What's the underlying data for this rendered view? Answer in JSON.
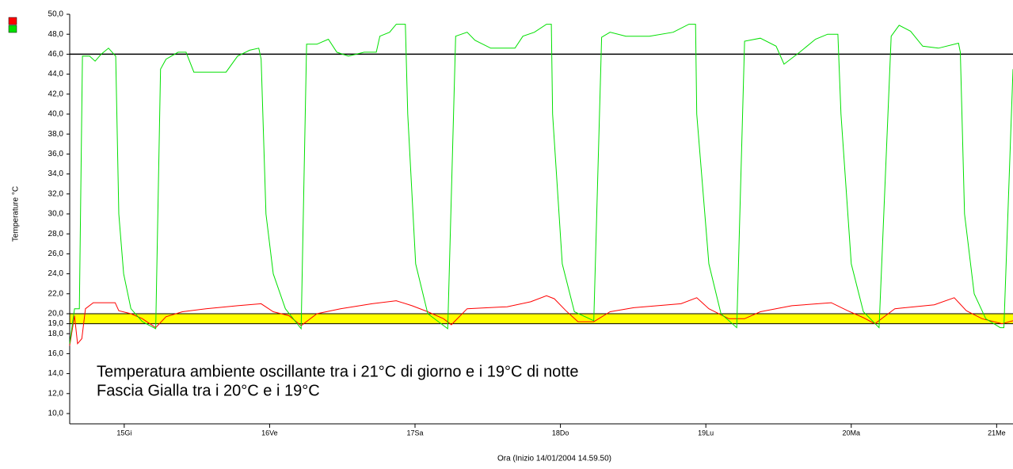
{
  "chart_data": {
    "type": "line",
    "ylabel": "Temperature °C",
    "xlabel": "Ora (Inizio 14/01/2004 14.59.50)",
    "ylim": [
      10,
      50
    ],
    "yticks": [
      {
        "value": 10,
        "label": "10,0"
      },
      {
        "value": 12,
        "label": "12,0"
      },
      {
        "value": 14,
        "label": "14,0"
      },
      {
        "value": 16,
        "label": "16,0"
      },
      {
        "value": 18,
        "label": "18,0"
      },
      {
        "value": 19,
        "label": "19,0"
      },
      {
        "value": 20,
        "label": "20,0"
      },
      {
        "value": 22,
        "label": "22,0"
      },
      {
        "value": 24,
        "label": "24,0"
      },
      {
        "value": 26,
        "label": "26,0"
      },
      {
        "value": 28,
        "label": "28,0"
      },
      {
        "value": 30,
        "label": "30,0"
      },
      {
        "value": 32,
        "label": "32,0"
      },
      {
        "value": 34,
        "label": "34,0"
      },
      {
        "value": 36,
        "label": "36,0"
      },
      {
        "value": 38,
        "label": "38,0"
      },
      {
        "value": 40,
        "label": "40,0"
      },
      {
        "value": 42,
        "label": "42,0"
      },
      {
        "value": 44,
        "label": "44,0"
      },
      {
        "value": 46,
        "label": "46,0"
      },
      {
        "value": 48,
        "label": "48,0"
      },
      {
        "value": 50,
        "label": "50,0"
      }
    ],
    "xlim": [
      0,
      155.7
    ],
    "xticks": [
      {
        "value": 9,
        "label": "15Gi"
      },
      {
        "value": 33,
        "label": "16Ve"
      },
      {
        "value": 57,
        "label": "17Sa"
      },
      {
        "value": 81,
        "label": "18Do"
      },
      {
        "value": 105,
        "label": "19Lu"
      },
      {
        "value": 129,
        "label": "20Ma"
      },
      {
        "value": 153,
        "label": "21Me"
      }
    ],
    "reference_line": {
      "value": 46,
      "color": "#000000"
    },
    "band": {
      "range": [
        19,
        20
      ],
      "color": "#ffff00"
    },
    "annotations": [
      "Temperatura ambiente oscillante tra i 21°C di giorno e i 19°C di notte",
      "Fascia Gialla tra i 20°C e i 19°C"
    ],
    "series": [
      {
        "color": "#ff0000",
        "x": [
          0,
          0.8,
          1.3,
          2.0,
          2.6,
          3.9,
          7.5,
          8.1,
          10.1,
          12.0,
          14.2,
          15.9,
          18.6,
          22.5,
          27.7,
          31.6,
          33.6,
          36.2,
          38.2,
          40.8,
          44.7,
          49.9,
          53.9,
          56.5,
          59.1,
          61.7,
          63.0,
          65.6,
          72.2,
          76.1,
          78.7,
          80.0,
          81.9,
          83.9,
          86.5,
          89.2,
          93.1,
          100.9,
          103.5,
          105.5,
          108.8,
          111.4,
          114.0,
          119.2,
          125.7,
          128.4,
          131.0,
          132.9,
          136.2,
          142.7,
          146.0,
          148.0,
          150.6,
          153.9,
          155.7
        ],
        "values": [
          16.8,
          19.8,
          17,
          17.5,
          20.5,
          21.1,
          21.1,
          20.3,
          20,
          19.5,
          18.6,
          19.7,
          20.2,
          20.5,
          20.8,
          21,
          20.2,
          19.8,
          18.8,
          20,
          20.5,
          21,
          21.3,
          20.8,
          20.2,
          19.5,
          18.9,
          20.5,
          20.7,
          21.2,
          21.8,
          21.5,
          20.3,
          19.2,
          19.2,
          20.2,
          20.6,
          21,
          21.6,
          20.5,
          19.5,
          19.5,
          20.2,
          20.8,
          21.1,
          20.3,
          19.6,
          19,
          20.5,
          20.9,
          21.6,
          20.3,
          19.5,
          19,
          19.3
        ]
      },
      {
        "color": "#00e000",
        "x": [
          0,
          0.8,
          1.6,
          2.1,
          3.3,
          4.2,
          5.2,
          6.4,
          7.6,
          8.1,
          8.9,
          10.1,
          12.0,
          14.2,
          15.0,
          15.9,
          17.9,
          19.2,
          20.5,
          25.8,
          27.7,
          29.7,
          31.2,
          31.6,
          32.4,
          33.6,
          35.6,
          38.2,
          39.1,
          40.8,
          42.7,
          44.1,
          46.0,
          48.6,
          50.6,
          51.2,
          52.8,
          53.9,
          55.4,
          55.8,
          57.1,
          59.1,
          62.4,
          63.7,
          65.6,
          66.9,
          69.5,
          73.5,
          74.8,
          76.7,
          78.7,
          79.5,
          79.7,
          81.3,
          83.3,
          86.5,
          87.8,
          89.2,
          91.8,
          95.7,
          99.6,
          102.2,
          103.3,
          103.5,
          105.5,
          107.5,
          110.1,
          111.4,
          114.0,
          116.6,
          117.9,
          120.5,
          123.1,
          125.1,
          126.8,
          127.3,
          129.0,
          131.0,
          133.6,
          135.6,
          136.9,
          138.8,
          140.8,
          143.4,
          146.7,
          147.0,
          147.7,
          149.3,
          151.2,
          153.6,
          154.2,
          155.7
        ],
        "values": [
          17,
          20.5,
          20.5,
          45.8,
          45.8,
          45.3,
          46,
          46.6,
          45.8,
          30,
          24,
          20.5,
          19.2,
          18.5,
          44.5,
          45.5,
          46.2,
          46.2,
          44.2,
          44.2,
          45.8,
          46.4,
          46.6,
          45.5,
          30,
          24,
          20.5,
          18.5,
          47,
          47,
          47.5,
          46.2,
          45.8,
          46.2,
          46.2,
          47.8,
          48.2,
          49,
          49,
          40,
          25,
          20,
          18.5,
          47.8,
          48.2,
          47.4,
          46.6,
          46.6,
          47.8,
          48.2,
          49,
          49,
          40,
          25,
          20.2,
          19.3,
          47.7,
          48.2,
          47.8,
          47.8,
          48.2,
          49,
          49,
          40,
          25,
          20,
          18.6,
          47.3,
          47.6,
          46.8,
          45,
          46.2,
          47.5,
          48,
          48,
          40,
          25,
          20.2,
          18.6,
          47.8,
          48.9,
          48.3,
          46.8,
          46.6,
          47.1,
          46.2,
          30,
          22,
          19.5,
          18.6,
          18.6,
          44.5
        ]
      }
    ]
  }
}
